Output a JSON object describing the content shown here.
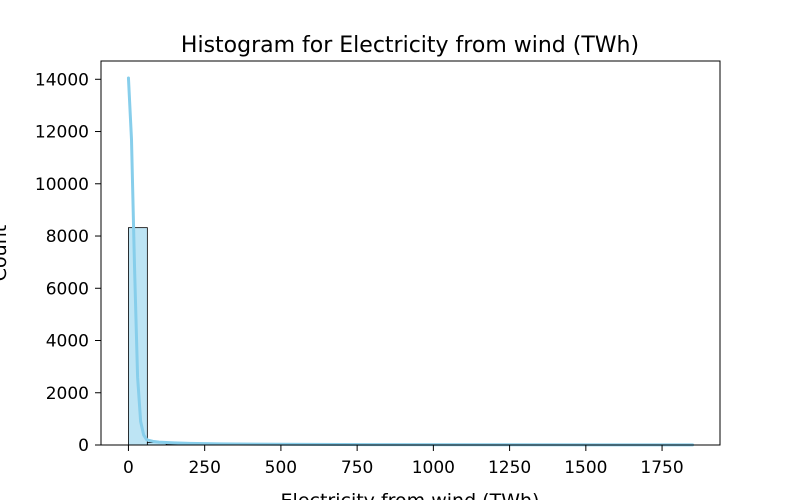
{
  "chart_data": {
    "type": "bar",
    "title": "Histogram for Electricity from wind (TWh)",
    "xlabel": "Electricity from wind (TWh)",
    "ylabel": "Count",
    "xlim": [
      -90,
      1940
    ],
    "ylim": [
      0,
      14700
    ],
    "x_ticks": [
      0,
      250,
      500,
      750,
      1000,
      1250,
      1500,
      1750
    ],
    "y_ticks": [
      0,
      2000,
      4000,
      6000,
      8000,
      10000,
      12000,
      14000
    ],
    "grid": false,
    "bins": [
      {
        "x0": 0,
        "x1": 62,
        "count": 8320
      },
      {
        "x0": 62,
        "x1": 124,
        "count": 95
      },
      {
        "x0": 124,
        "x1": 186,
        "count": 40
      },
      {
        "x0": 186,
        "x1": 248,
        "count": 25
      },
      {
        "x0": 248,
        "x1": 310,
        "count": 18
      },
      {
        "x0": 310,
        "x1": 372,
        "count": 15
      },
      {
        "x0": 372,
        "x1": 434,
        "count": 12
      },
      {
        "x0": 434,
        "x1": 496,
        "count": 10
      },
      {
        "x0": 496,
        "x1": 558,
        "count": 8
      },
      {
        "x0": 558,
        "x1": 620,
        "count": 7
      },
      {
        "x0": 620,
        "x1": 682,
        "count": 6
      },
      {
        "x0": 682,
        "x1": 744,
        "count": 5
      },
      {
        "x0": 744,
        "x1": 806,
        "count": 4
      },
      {
        "x0": 806,
        "x1": 868,
        "count": 4
      },
      {
        "x0": 868,
        "x1": 930,
        "count": 3
      },
      {
        "x0": 930,
        "x1": 992,
        "count": 3
      },
      {
        "x0": 992,
        "x1": 1054,
        "count": 3
      },
      {
        "x0": 1054,
        "x1": 1116,
        "count": 2
      },
      {
        "x0": 1116,
        "x1": 1178,
        "count": 2
      },
      {
        "x0": 1178,
        "x1": 1240,
        "count": 2
      },
      {
        "x0": 1240,
        "x1": 1302,
        "count": 2
      },
      {
        "x0": 1302,
        "x1": 1364,
        "count": 1
      },
      {
        "x0": 1364,
        "x1": 1426,
        "count": 1
      },
      {
        "x0": 1426,
        "x1": 1488,
        "count": 1
      },
      {
        "x0": 1488,
        "x1": 1550,
        "count": 1
      },
      {
        "x0": 1550,
        "x1": 1612,
        "count": 1
      },
      {
        "x0": 1612,
        "x1": 1674,
        "count": 1
      },
      {
        "x0": 1674,
        "x1": 1736,
        "count": 1
      },
      {
        "x0": 1736,
        "x1": 1798,
        "count": 1
      },
      {
        "x0": 1798,
        "x1": 1860,
        "count": 1
      }
    ],
    "kde": {
      "x": [
        0,
        10,
        20,
        30,
        40,
        50,
        60,
        80,
        100,
        150,
        200,
        300,
        500,
        800,
        1200,
        1600,
        1850
      ],
      "y": [
        14050,
        11700,
        6800,
        2600,
        900,
        380,
        200,
        140,
        110,
        80,
        60,
        45,
        28,
        16,
        9,
        5,
        3
      ]
    },
    "colors": {
      "bar_fill": "#87ceeb",
      "bar_fill_opacity": 0.55,
      "bar_edge": "#000000",
      "kde_line": "#87ceeb"
    }
  }
}
